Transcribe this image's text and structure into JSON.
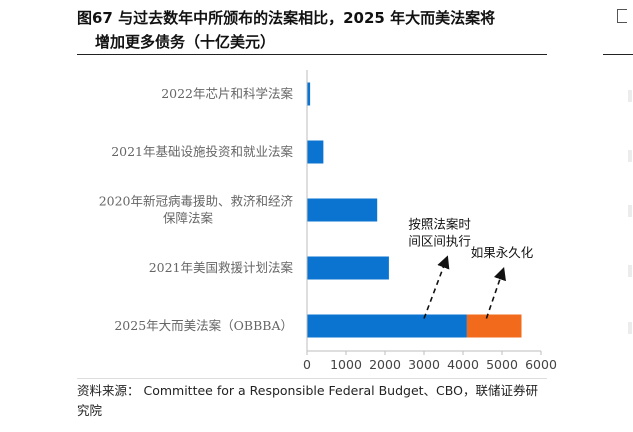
{
  "figure": {
    "title_line1": "图67 与过去数年中所颁布的法案相比，2025 年大而美法案将",
    "title_line2": "增加更多债务（十亿美元）",
    "source": "资料来源：  Committee for a Responsible Federal Budget、CBO，联储证券研究院"
  },
  "chart_data": {
    "type": "bar",
    "orientation": "horizontal",
    "stacked": true,
    "categories": [
      "2022年芯片和科学法案",
      "2021年基础设施投资和就业法案",
      "2020年新冠病毒援助、救济和经济保障法案",
      "2021年美国救援计划法案",
      "2025年大而美法案（OBBBA）"
    ],
    "category_lines": [
      [
        "2022年芯片和科学法案"
      ],
      [
        "2021年基础设施投资和就业法案"
      ],
      [
        "2020年新冠病毒援助、救济和经济",
        "保障法案"
      ],
      [
        "2021年美国救援计划法案"
      ],
      [
        "2025年大而美法案（OBBBA）"
      ]
    ],
    "series": [
      {
        "name": "按照法案时间区间执行",
        "color": "#0b74d1",
        "values": [
          80,
          420,
          1800,
          2100,
          4100
        ]
      },
      {
        "name": "如果永久化",
        "color": "#f26a1b",
        "values": [
          0,
          0,
          0,
          0,
          1400
        ]
      }
    ],
    "annotations": [
      {
        "lines": [
          "按照法案时",
          "间区间执行"
        ],
        "series": 0,
        "category": 4,
        "x_value": 3000,
        "label_x_value": 3400,
        "label_category": 2.6
      },
      {
        "lines": [
          "如果永久化"
        ],
        "series": 1,
        "category": 4,
        "x_value": 4600,
        "label_x_value": 5000,
        "label_category": 2.95
      }
    ],
    "xlim": [
      0,
      6000
    ],
    "xticks": [
      0,
      1000,
      2000,
      3000,
      4000,
      5000,
      6000
    ],
    "grid": false,
    "legend": "none",
    "xlabel": "",
    "ylabel": ""
  }
}
